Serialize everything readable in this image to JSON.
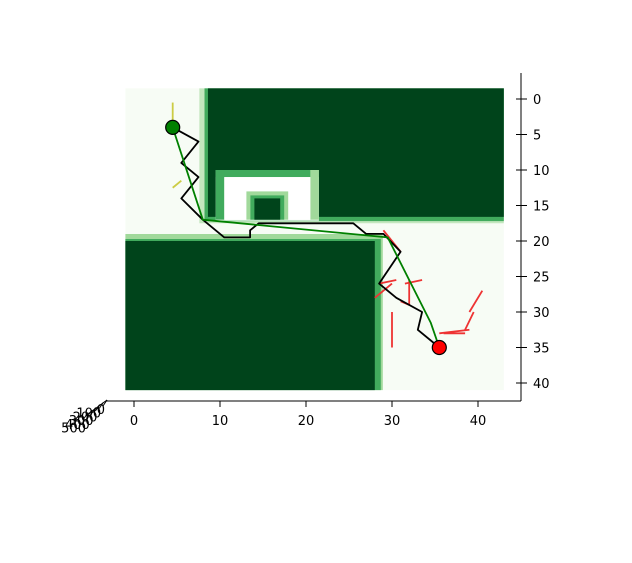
{
  "chart_data": {
    "type": "scatter",
    "title": "",
    "xlabel": "",
    "ylabel": "",
    "xlim": [
      -1,
      44
    ],
    "ylim": [
      41,
      -1
    ],
    "x_ticks": [
      "0",
      "10",
      "20",
      "30",
      "40"
    ],
    "y_ticks": [
      "0",
      "5",
      "10",
      "15",
      "20",
      "25",
      "30",
      "35",
      "40"
    ],
    "z_ticks": [
      "0",
      "100",
      "200",
      "300",
      "400",
      "500"
    ],
    "grid": false,
    "colors": {
      "obstacle": "#00441b",
      "obstacle_edge": "#41ab5d",
      "obstacle_edge_light": "#a1d99b",
      "background": "#f7fcf5",
      "path_black": "#000000",
      "path_green": "#008000",
      "branches_red": "#ee3333",
      "branches_yellow": "#cccc44",
      "start": "#008000",
      "goal": "#ff0000"
    },
    "obstacles": [
      {
        "x": [
          8,
          43
        ],
        "y": [
          -1,
          16
        ]
      },
      {
        "x": [
          -1,
          28
        ],
        "y": [
          20,
          41
        ]
      },
      {
        "x": [
          14,
          17
        ],
        "y": [
          14,
          17
        ]
      }
    ],
    "u_wall": {
      "x": [
        9.5,
        21.5
      ],
      "y": [
        10,
        17
      ],
      "thickness": 1
    },
    "start": {
      "x": 4.5,
      "y": 4
    },
    "goal": {
      "x": 35.5,
      "y": 35
    },
    "series": [
      {
        "style": "black",
        "points": [
          [
            4.5,
            4
          ],
          [
            7.5,
            6
          ],
          [
            5.5,
            9
          ],
          [
            7.5,
            11
          ],
          [
            5.5,
            14
          ],
          [
            8,
            17
          ],
          [
            10.5,
            19.5
          ],
          [
            13.5,
            19.5
          ],
          [
            13.5,
            18.5
          ],
          [
            14.5,
            17.5
          ],
          [
            25.5,
            17.5
          ],
          [
            27,
            19
          ],
          [
            29,
            19
          ],
          [
            31,
            21.5
          ],
          [
            28.5,
            26
          ],
          [
            30.5,
            28
          ],
          [
            33.5,
            30
          ],
          [
            33,
            32.5
          ],
          [
            35.5,
            35
          ]
        ]
      },
      {
        "style": "green",
        "points": [
          [
            4.5,
            4
          ],
          [
            8,
            17
          ],
          [
            29.5,
            19.5
          ],
          [
            34.5,
            31.5
          ],
          [
            35.5,
            35
          ]
        ]
      }
    ],
    "branches_red": [
      [
        [
          29,
          18.5
        ],
        [
          31,
          21.5
        ]
      ],
      [
        [
          28.5,
          26
        ],
        [
          30.5,
          25.5
        ]
      ],
      [
        [
          31.5,
          26
        ],
        [
          33.5,
          25.5
        ]
      ],
      [
        [
          30,
          26
        ],
        [
          28,
          28
        ]
      ],
      [
        [
          32,
          29
        ],
        [
          32,
          25.5
        ]
      ],
      [
        [
          31,
          28.5
        ],
        [
          32,
          29
        ]
      ],
      [
        [
          30,
          30
        ],
        [
          30,
          35
        ]
      ],
      [
        [
          35.5,
          33
        ],
        [
          39,
          32.5
        ]
      ],
      [
        [
          38.5,
          32.5
        ],
        [
          39.5,
          30
        ]
      ],
      [
        [
          39,
          30
        ],
        [
          40.5,
          27
        ]
      ],
      [
        [
          36,
          33
        ],
        [
          38.5,
          33
        ]
      ]
    ],
    "branches_yellow": [
      [
        [
          4.5,
          4
        ],
        [
          4.5,
          0.5
        ]
      ],
      [
        [
          5.5,
          11.5
        ],
        [
          4.5,
          12.5
        ]
      ]
    ]
  }
}
